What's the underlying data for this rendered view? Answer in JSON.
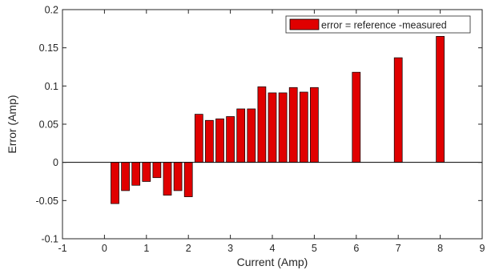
{
  "chart_data": {
    "type": "bar",
    "xlabel": "Current (Amp)",
    "ylabel": "Error (Amp)",
    "xlim": [
      -1,
      9
    ],
    "ylim": [
      -0.1,
      0.2
    ],
    "xticks": [
      "-1",
      "0",
      "1",
      "2",
      "3",
      "4",
      "5",
      "6",
      "7",
      "8",
      "9"
    ],
    "yticks": [
      "-0.1",
      "-0.05",
      "0",
      "0.05",
      "0.1",
      "0.15",
      "0.2"
    ],
    "legend_position": "top-right",
    "bar_color": "#e00000",
    "bar_edge_color": "#000000",
    "series": [
      {
        "name": "error = reference -measured",
        "x": [
          0.25,
          0.5,
          0.75,
          1.0,
          1.25,
          1.5,
          1.75,
          2.0,
          2.25,
          2.5,
          2.75,
          3.0,
          3.25,
          3.5,
          3.75,
          4.0,
          4.25,
          4.5,
          4.75,
          5.0,
          6.0,
          7.0,
          8.0
        ],
        "values": [
          -0.054,
          -0.037,
          -0.03,
          -0.025,
          -0.02,
          -0.043,
          -0.037,
          -0.045,
          0.063,
          0.055,
          0.057,
          0.06,
          0.07,
          0.07,
          0.099,
          0.091,
          0.091,
          0.098,
          0.092,
          0.098,
          0.118,
          0.137,
          0.165
        ]
      }
    ]
  }
}
